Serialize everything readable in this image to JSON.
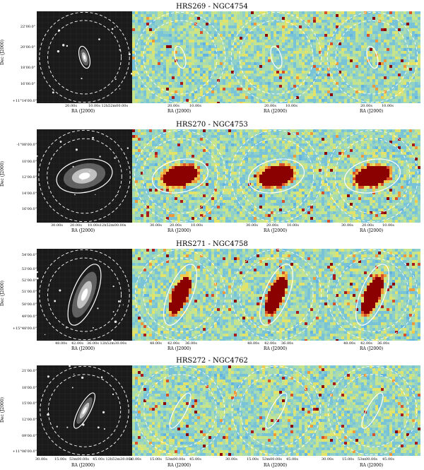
{
  "ylabel": "Dec (J2000)",
  "xlabel": "RA (J2000)",
  "colors": {
    "optical_bg": "#1a1a1a",
    "map_mid": "#62b3df",
    "hot": "#8b0000",
    "ellipse": "#ffffff"
  },
  "rows": [
    {
      "title": "HRS269 - NGC4754",
      "dec_ticks": [
        "22'00.0\"",
        "20'00.0\"",
        "18'00.0\"",
        "16'00.0\"",
        "+11°14'00.0\""
      ],
      "opt_ra_ticks": [
        "20.00s",
        "10.00s 12h52m00.00s"
      ],
      "map_ra_ticks": [
        [
          "20.00s",
          "10.00s"
        ],
        [
          "20.00s",
          "10.00s"
        ],
        [
          "20.00s",
          "10.00s"
        ]
      ],
      "ellipse": {
        "rx": 7,
        "ry": 16,
        "angle": -15
      },
      "detected": false
    },
    {
      "title": "HRS270 - NGC4753",
      "dec_ticks": [
        "-1°08'00.0\"",
        "10'00.0\"",
        "12'00.0\"",
        "14'00.0\"",
        "16'00.0\""
      ],
      "opt_ra_ticks": [
        "30.00s",
        "20.00s",
        "10.00s12h52m00.00s"
      ],
      "map_ra_ticks": [
        [
          "30.00s",
          "20.00s",
          "10.00s"
        ],
        [
          "30.00s",
          "20.00s",
          "10.00s"
        ],
        [
          "30.00s",
          "20.00s",
          "10.00s"
        ]
      ],
      "ellipse": {
        "rx": 40,
        "ry": 23,
        "angle": -12
      },
      "detected": true
    },
    {
      "title": "HRS271 - NGC4758",
      "dec_ticks": [
        "54'00.0\"",
        "53'00.0\"",
        "52'00.0\"",
        "51'00.0\"",
        "50'00.0\"",
        "49'00.0\"",
        "+15°48'00.0\""
      ],
      "opt_ra_ticks": [
        "48.00s",
        "42.00s",
        "36.00s 12h52m30.00s"
      ],
      "map_ra_ticks": [
        [
          "48.00s",
          "42.00s",
          "36.00s"
        ],
        [
          "48.00s",
          "42.00s",
          "36.00s"
        ],
        [
          "48.00s",
          "42.00s",
          "36.00s"
        ]
      ],
      "ellipse": {
        "rx": 17,
        "ry": 46,
        "angle": 22
      },
      "detected": true
    },
    {
      "title": "HRS272 - NGC4762",
      "dec_ticks": [
        "21'00.0\"",
        "18'00.0\"",
        "15'00.0\"",
        "12'00.0\"",
        "09'00.0\"",
        "+11°06'00.0\""
      ],
      "opt_ra_ticks": [
        "30.00s",
        "15.00s",
        "53m00.00s",
        "45.00s 12h52m30.00s"
      ],
      "map_ra_ticks": [
        [
          "30.00s",
          "15.00s",
          "53m00.00s",
          "45.00s"
        ],
        [
          "30.00s",
          "15.00s",
          "53m00.00s",
          "45.00s"
        ],
        [
          "30.00s",
          "15.00s",
          "53m00.00s",
          "45.00s"
        ]
      ],
      "ellipse": {
        "rx": 8,
        "ry": 28,
        "angle": 28
      },
      "detected": false
    }
  ]
}
